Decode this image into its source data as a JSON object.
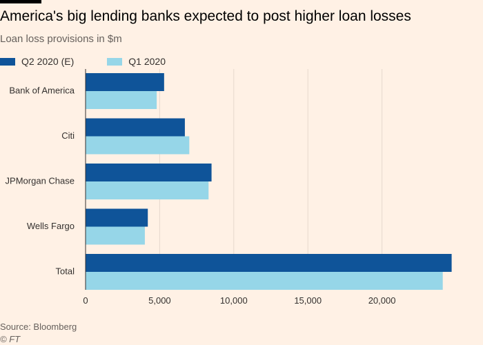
{
  "header": {
    "title": "America's big lending banks expected to post higher loan losses",
    "subtitle": "Loan loss provisions in $m"
  },
  "colors": {
    "background": "#fff1e5",
    "q2": "#0f5499",
    "q1": "#96d6e8",
    "grid": "#e6d9ce",
    "axis": "#33302e"
  },
  "legend": [
    {
      "label": "Q2 2020 (E)",
      "color": "#0f5499"
    },
    {
      "label": "Q1 2020",
      "color": "#96d6e8"
    }
  ],
  "chart_data": {
    "type": "bar",
    "orientation": "horizontal",
    "title": "America's big lending banks expected to post higher loan losses",
    "subtitle": "Loan loss provisions in $m",
    "categories": [
      "Bank of America",
      "Citi",
      "JPMorgan Chase",
      "Wells Fargo",
      "Total"
    ],
    "series": [
      {
        "name": "Q2 2020 (E)",
        "values": [
          5300,
          6700,
          8500,
          4200,
          24700
        ]
      },
      {
        "name": "Q1 2020",
        "values": [
          4800,
          7000,
          8300,
          4000,
          24100
        ]
      }
    ],
    "xlim": [
      0,
      25000
    ],
    "xticks": [
      0,
      5000,
      10000,
      15000,
      20000
    ],
    "xtick_labels": [
      "0",
      "5,000",
      "10,000",
      "15,000",
      "20,000"
    ],
    "grid": true,
    "legend_position": "top-left"
  },
  "footer": {
    "source": "Source: Bloomberg",
    "copyright": "© FT"
  }
}
